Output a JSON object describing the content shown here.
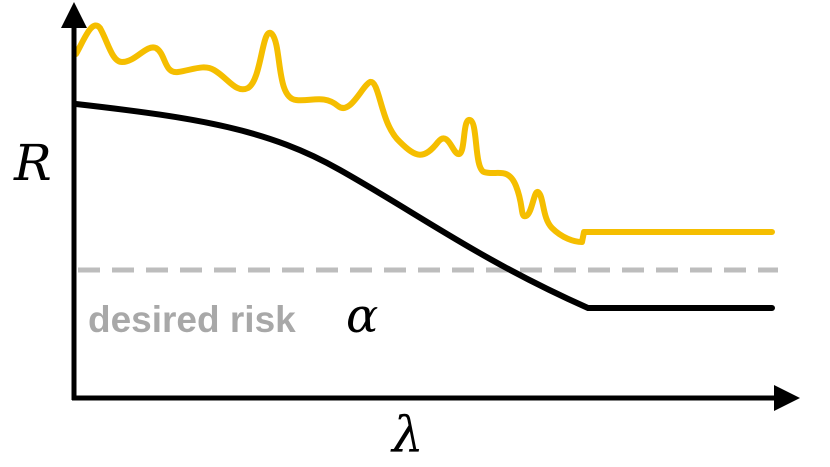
{
  "diagram": {
    "y_axis_label": "R",
    "x_axis_label": "λ",
    "threshold_label_text": "desired risk",
    "threshold_symbol": "α",
    "colors": {
      "axes": "#000000",
      "empirical_curve": "#f5be00",
      "true_curve": "#000000",
      "threshold": "#bdbdbd",
      "threshold_text": "#a8a8a8"
    }
  }
}
